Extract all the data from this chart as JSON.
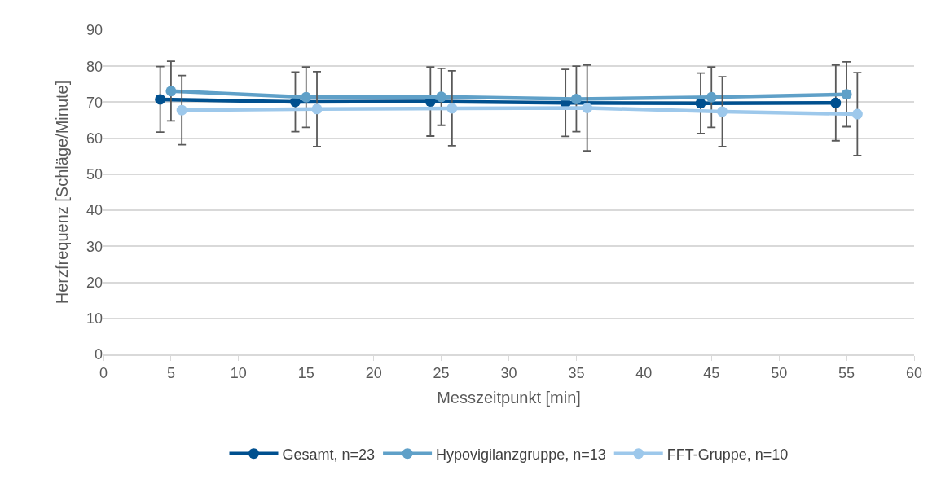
{
  "chart_data": {
    "type": "line",
    "xlabel": "Messzeitpunkt [min]",
    "ylabel": "Herzfrequenz [Schläge/Minute]",
    "xlim": [
      0,
      60
    ],
    "xticks": [
      0,
      5,
      10,
      15,
      20,
      25,
      30,
      35,
      40,
      45,
      50,
      55,
      60
    ],
    "ylim": [
      0,
      90
    ],
    "yticks": [
      0,
      10,
      20,
      30,
      40,
      50,
      60,
      70,
      80,
      90
    ],
    "grid": "y",
    "legend": "bottom",
    "marker": "circle",
    "line_style": "solid",
    "series": [
      {
        "name": "Gesamt, n=23",
        "color": "#00508f",
        "x": [
          4.2,
          14.2,
          24.2,
          34.2,
          44.2,
          54.2
        ],
        "values": [
          70.8,
          70.1,
          70.2,
          69.8,
          69.7,
          69.8
        ],
        "errors": [
          9.1,
          8.3,
          9.6,
          9.3,
          8.4,
          10.5
        ]
      },
      {
        "name": "Hypovigilanzgruppe, n=13",
        "color": "#5fa0c8",
        "x": [
          5,
          15,
          25,
          35,
          45,
          55
        ],
        "values": [
          73.1,
          71.4,
          71.5,
          70.9,
          71.4,
          72.2
        ],
        "errors": [
          8.3,
          8.4,
          7.9,
          9.1,
          8.4,
          9.0
        ]
      },
      {
        "name": "FFT-Gruppe, n=10",
        "color": "#9dc8eb",
        "x": [
          5.8,
          15.8,
          25.8,
          35.8,
          45.8,
          55.8
        ],
        "values": [
          67.8,
          68.1,
          68.3,
          68.4,
          67.4,
          66.7
        ],
        "errors": [
          9.6,
          10.4,
          10.4,
          11.9,
          9.7,
          11.5
        ]
      }
    ]
  }
}
